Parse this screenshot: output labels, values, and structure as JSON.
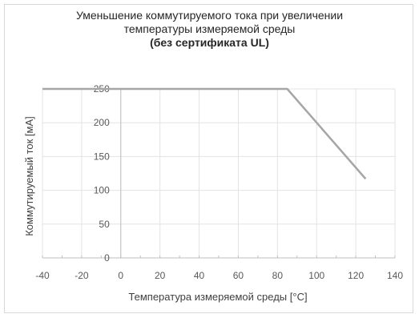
{
  "chart_data": {
    "type": "line",
    "title_lines": [
      "Уменьшение коммутируемого тока при увеличении",
      "температуры измеряемой среды",
      "(без сертификата UL)"
    ],
    "xlabel": "Температура измеряемой среды [°C]",
    "ylabel": "Коммутируемый ток [мА]",
    "xlim": [
      -40,
      140
    ],
    "ylim": [
      0,
      250
    ],
    "x_ticks": [
      -40,
      -20,
      0,
      20,
      40,
      60,
      80,
      100,
      120,
      140
    ],
    "y_ticks": [
      0,
      50,
      100,
      150,
      200,
      250
    ],
    "grid": true,
    "legend": "none",
    "series": [
      {
        "x": [
          -40,
          85,
          125
        ],
        "y": [
          250,
          250,
          117
        ],
        "color": "#a6a6a6"
      }
    ]
  }
}
